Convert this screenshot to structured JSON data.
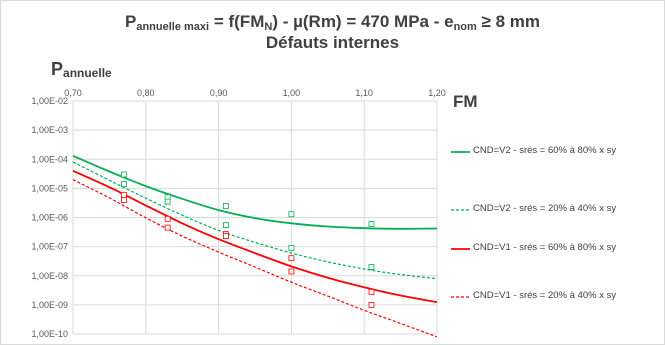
{
  "chart_data": {
    "type": "line",
    "title_parts": {
      "p": "P",
      "p_sub": "annuelle maxi",
      "mid": " = f(FM",
      "n_sub": "N",
      "mid2": ")  - µ(Rm) = 470 MPa - e",
      "e_sub": "nom",
      "tail": " ≥ 8 mm"
    },
    "subtitle": "Défauts internes",
    "ylabel": {
      "main": "P",
      "sub": "annuelle"
    },
    "xlabel": "FM",
    "y_scale": "log",
    "xlim": [
      0.7,
      1.2
    ],
    "ylim": [
      1e-10,
      0.01
    ],
    "x_ticks": [
      "0,70",
      "0,80",
      "0,90",
      "1,00",
      "1,10",
      "1,20"
    ],
    "y_ticks": [
      "1,00E-02",
      "1,00E-03",
      "1,00E-04",
      "1,00E-05",
      "1,00E-06",
      "1,00E-07",
      "1,00E-08",
      "1,00E-09",
      "1,00E-10"
    ],
    "grid": true,
    "legend_position": "right",
    "series": [
      {
        "name": "CND=V2 - srés = 60% à 80% x sy",
        "color": "#00b050",
        "style": "solid",
        "curve_x": [
          0.7,
          0.75,
          0.8,
          0.85,
          0.9,
          0.95,
          1.0,
          1.05,
          1.1,
          1.15,
          1.2
        ],
        "curve_y": [
          0.00013,
          3.8e-05,
          1.2e-05,
          4.4e-06,
          1.8e-06,
          9.5e-07,
          6.3e-07,
          4.9e-07,
          4.3e-07,
          4.1e-07,
          4.2e-07
        ],
        "points_x": [
          0.77,
          0.83,
          0.91,
          1.0,
          1.11
        ],
        "points_y": [
          3e-05,
          5e-06,
          2.5e-06,
          1.3e-06,
          6e-07
        ]
      },
      {
        "name": "CND=V2 - srés = 20% à 40% x sy",
        "color": "#00b050",
        "style": "dashed",
        "curve_x": [
          0.7,
          0.75,
          0.8,
          0.85,
          0.9,
          0.95,
          1.0,
          1.05,
          1.1,
          1.15,
          1.2
        ],
        "curve_y": [
          8e-05,
          1.9e-05,
          4.6e-06,
          1.2e-06,
          3.6e-07,
          1.4e-07,
          6e-08,
          3e-08,
          1.7e-08,
          1.1e-08,
          8e-09
        ],
        "points_x": [
          0.77,
          0.83,
          0.91,
          1.0,
          1.11
        ],
        "points_y": [
          1.4e-05,
          3.5e-06,
          5.5e-07,
          9e-08,
          2e-08
        ]
      },
      {
        "name": "CND=V1 - srés = 60% à 80% x sy",
        "color": "#ff0000",
        "style": "solid",
        "curve_x": [
          0.7,
          0.75,
          0.8,
          0.85,
          0.9,
          0.95,
          1.0,
          1.05,
          1.1,
          1.15,
          1.2
        ],
        "curve_y": [
          4e-05,
          1.1e-05,
          2.6e-06,
          6.3e-07,
          1.8e-07,
          6e-08,
          2.1e-08,
          8.5e-09,
          4e-09,
          2.1e-09,
          1.25e-09
        ],
        "points_x": [
          0.77,
          0.83,
          0.91,
          1.0,
          1.11
        ],
        "points_y": [
          6e-06,
          9e-07,
          2.7e-07,
          4e-08,
          2.8e-09
        ]
      },
      {
        "name": "CND=V1 - srés = 20% à 40% x sy",
        "color": "#ff0000",
        "style": "dashed",
        "curve_x": [
          0.7,
          0.75,
          0.8,
          0.85,
          0.9,
          0.95,
          1.0,
          1.05,
          1.1,
          1.15,
          1.2
        ],
        "curve_y": [
          2e-05,
          4.7e-06,
          9.8e-07,
          2.3e-07,
          6.5e-08,
          2e-08,
          6e-09,
          2e-09,
          6.5e-10,
          2.3e-10,
          8e-11
        ],
        "points_x": [
          0.77,
          0.83,
          0.91,
          1.0,
          1.11
        ],
        "points_y": [
          4e-06,
          4.5e-07,
          2.3e-07,
          1.4e-08,
          1e-09
        ]
      }
    ]
  }
}
